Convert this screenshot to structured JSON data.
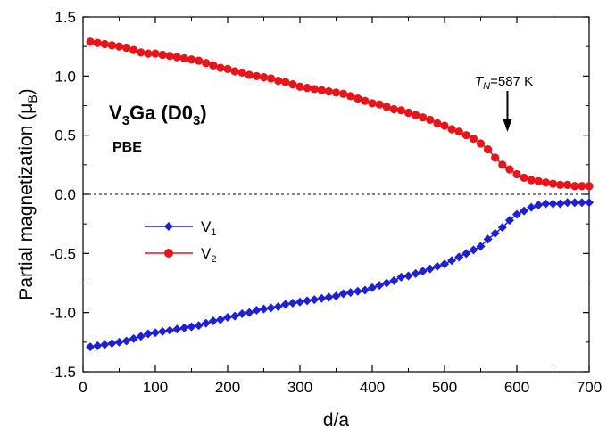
{
  "chart_data": {
    "type": "scatter",
    "xlabel": "d/a",
    "ylabel": "Partial magnetization (μ_B)",
    "ylabel_text": "Partial magnetization (μ",
    "ylabel_sub": "B",
    "ylabel_close": ")",
    "xlim": [
      0,
      700
    ],
    "ylim": [
      -1.5,
      1.5
    ],
    "x_ticks": [
      0,
      100,
      200,
      300,
      400,
      500,
      600,
      700
    ],
    "x_tick_labels": [
      "0",
      "100",
      "200",
      "300",
      "400",
      "500",
      "600",
      "700"
    ],
    "y_ticks": [
      1.5,
      1.0,
      0.5,
      0.0,
      -0.5,
      -1.0,
      -1.5
    ],
    "y_tick_labels": [
      "1.5",
      "1.0",
      "0.5",
      "0.0",
      "-0.5",
      "-1.0",
      "-1.5"
    ],
    "material_label": {
      "part1": "V",
      "sub1": "3",
      "part2": "Ga (D0",
      "sub2": "3",
      "part3": ")"
    },
    "method_label": "PBE",
    "annotation": {
      "prefix": "T",
      "sub": "N",
      "suffix": "=587 K",
      "x": 587
    },
    "zero_line": true,
    "legend_position": "left-center",
    "series": [
      {
        "name": "V1",
        "legend_main": "V",
        "legend_sub": "1",
        "marker": "diamond",
        "color": "#1f1fd6",
        "x": [
          10,
          20,
          30,
          40,
          50,
          60,
          70,
          80,
          90,
          100,
          110,
          120,
          130,
          140,
          150,
          160,
          170,
          180,
          190,
          200,
          210,
          220,
          230,
          240,
          250,
          260,
          270,
          280,
          290,
          300,
          310,
          320,
          330,
          340,
          350,
          360,
          370,
          380,
          390,
          400,
          410,
          420,
          430,
          440,
          450,
          460,
          470,
          480,
          490,
          500,
          510,
          520,
          530,
          540,
          550,
          560,
          570,
          580,
          590,
          600,
          610,
          620,
          630,
          640,
          650,
          660,
          670,
          680,
          690,
          700
        ],
        "y": [
          -1.29,
          -1.28,
          -1.27,
          -1.26,
          -1.25,
          -1.24,
          -1.22,
          -1.2,
          -1.18,
          -1.17,
          -1.16,
          -1.15,
          -1.14,
          -1.13,
          -1.12,
          -1.11,
          -1.09,
          -1.07,
          -1.06,
          -1.04,
          -1.03,
          -1.01,
          -1.0,
          -0.98,
          -0.97,
          -0.96,
          -0.95,
          -0.93,
          -0.92,
          -0.91,
          -0.9,
          -0.89,
          -0.88,
          -0.87,
          -0.86,
          -0.84,
          -0.83,
          -0.82,
          -0.81,
          -0.79,
          -0.77,
          -0.75,
          -0.73,
          -0.7,
          -0.69,
          -0.67,
          -0.65,
          -0.63,
          -0.61,
          -0.59,
          -0.56,
          -0.53,
          -0.5,
          -0.47,
          -0.44,
          -0.38,
          -0.33,
          -0.28,
          -0.22,
          -0.17,
          -0.14,
          -0.11,
          -0.09,
          -0.08,
          -0.08,
          -0.08,
          -0.07,
          -0.07,
          -0.07,
          -0.07
        ]
      },
      {
        "name": "V2",
        "legend_main": "V",
        "legend_sub": "2",
        "marker": "circle",
        "color": "#e8141a",
        "x": [
          10,
          20,
          30,
          40,
          50,
          60,
          70,
          80,
          90,
          100,
          110,
          120,
          130,
          140,
          150,
          160,
          170,
          180,
          190,
          200,
          210,
          220,
          230,
          240,
          250,
          260,
          270,
          280,
          290,
          300,
          310,
          320,
          330,
          340,
          350,
          360,
          370,
          380,
          390,
          400,
          410,
          420,
          430,
          440,
          450,
          460,
          470,
          480,
          490,
          500,
          510,
          520,
          530,
          540,
          550,
          560,
          570,
          580,
          590,
          600,
          610,
          620,
          630,
          640,
          650,
          660,
          670,
          680,
          690,
          700
        ],
        "y": [
          1.29,
          1.28,
          1.27,
          1.26,
          1.25,
          1.24,
          1.22,
          1.2,
          1.19,
          1.19,
          1.18,
          1.17,
          1.16,
          1.15,
          1.14,
          1.13,
          1.11,
          1.09,
          1.07,
          1.06,
          1.04,
          1.03,
          1.01,
          1.0,
          0.99,
          0.98,
          0.96,
          0.95,
          0.93,
          0.91,
          0.9,
          0.89,
          0.88,
          0.87,
          0.86,
          0.85,
          0.83,
          0.81,
          0.79,
          0.77,
          0.76,
          0.74,
          0.72,
          0.71,
          0.69,
          0.67,
          0.65,
          0.63,
          0.6,
          0.58,
          0.55,
          0.53,
          0.5,
          0.47,
          0.43,
          0.38,
          0.31,
          0.25,
          0.21,
          0.17,
          0.14,
          0.12,
          0.11,
          0.1,
          0.09,
          0.08,
          0.08,
          0.07,
          0.07,
          0.07
        ]
      }
    ]
  }
}
